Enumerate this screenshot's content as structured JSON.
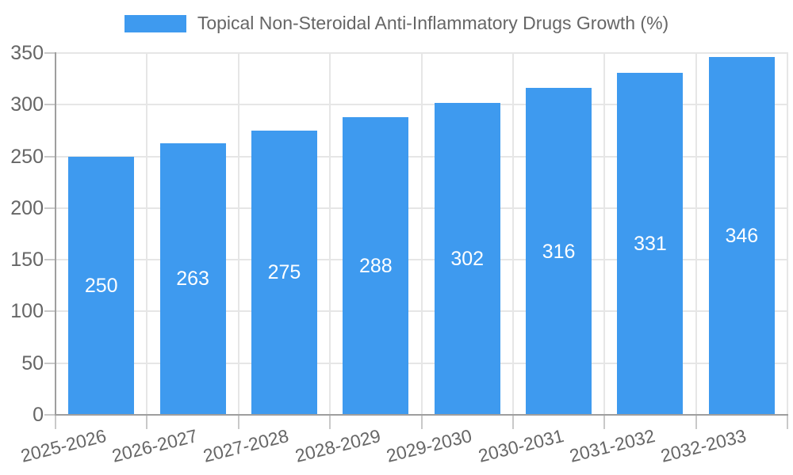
{
  "legend": {
    "label": "Topical Non-Steroidal Anti-Inflammatory Drugs Growth (%)"
  },
  "chart_data": {
    "type": "bar",
    "title": "Topical Non-Steroidal Anti-Inflammatory Drugs Growth (%)",
    "categories": [
      "2025-2026",
      "2026-2027",
      "2027-2028",
      "2028-2029",
      "2029-2030",
      "2030-2031",
      "2031-2032",
      "2032-2033"
    ],
    "values": [
      250,
      263,
      275,
      288,
      302,
      316,
      331,
      346
    ],
    "yticks": [
      0,
      50,
      100,
      150,
      200,
      250,
      300,
      350
    ],
    "ylim": [
      0,
      350
    ],
    "xlabel": "",
    "ylabel": "",
    "grid": true,
    "legend_position": "top-center",
    "value_labels": "centered-inside-bars",
    "colors": {
      "bar": "#3E9AEF",
      "grid": "#E6E6E6",
      "axis": "#9E9E9E",
      "tick": "#C9C9C9",
      "text": "#666666",
      "bar_label": "#FFFFFF"
    }
  }
}
